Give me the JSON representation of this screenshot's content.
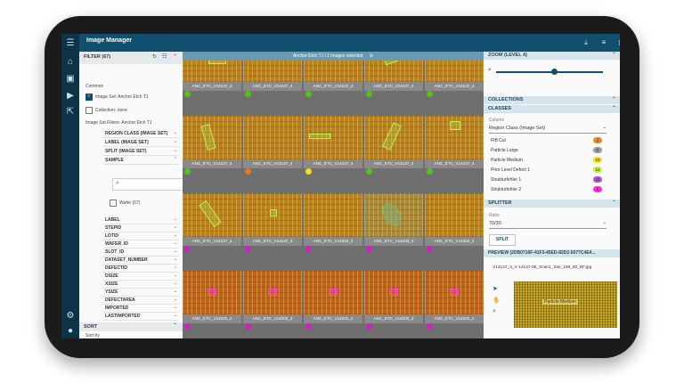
{
  "app": {
    "title": "Image Manager"
  },
  "rail": {
    "icons": [
      "menu-icon",
      "home-icon",
      "image-icon",
      "play-icon",
      "external-link-icon",
      "settings-icon",
      "user-icon"
    ]
  },
  "topbar": {
    "icons": [
      "download-icon",
      "list-icon",
      "image-icon"
    ]
  },
  "selection": {
    "text": "Anchor Etch TJ | 1 images selected"
  },
  "filter": {
    "header": "FILTER (67)",
    "common_label": "Common",
    "image_set_check": "Image Set: Anchor Etch TJ",
    "collection_check": "Collection: none",
    "image_set_filters": "Image Set Filters: Anchor Etch TJ",
    "facets_top": [
      "REGION CLASS (IMAGE SET)",
      "LABEL (IMAGE SET)",
      "SPLIT (IMAGE SET)",
      "SAMPLE"
    ],
    "wafer_option": "Wafer (67)",
    "facets_bottom": [
      "LABEL",
      "STEPID",
      "LOTID",
      "WAFER_ID",
      "SLOT_ID",
      "DATASET_NUMBER",
      "DEFECTID",
      "DSIZE",
      "XSIZE",
      "YSIZE",
      "DEFECTAREA",
      "IMPORTED",
      "LASTIMPORTED"
    ],
    "sort_header": "SORT",
    "sort_by": "Sort by"
  },
  "grid": {
    "captions": [
      [
        "ANC_ETC_V14137_4",
        "ANC_ETC_V14137_4",
        "ANC_ETC_V14137_4",
        "ANC_ETC_V14137_4",
        "ANC_ETC_V14137_4"
      ],
      [
        "ANC_ETC_V14137_4",
        "ANC_ETC_V14137_4",
        "ANC_ETC_V14137_4",
        "ANC_ETC_V14137_4",
        "ANC_ETC_V14137_4"
      ],
      [
        "ANC_ETC_V14137_4",
        "ANC_ETC_V14137_4",
        "ANC_ETC_V14203_2",
        "ANC_ETC_V14203_2",
        "ANC_ETC_V14203_2"
      ],
      [
        "ANC_ETC_V14203_2",
        "ANC_ETC_V14203_2",
        "ANC_ETC_V14203_2",
        "ANC_ETC_V14203_2",
        "ANC_ETC_V14203_2"
      ]
    ],
    "dot_colors": [
      [
        "#55c21a",
        "#55c21a",
        "#55c21a",
        "#55c21a",
        "#55c21a"
      ],
      [
        "#55c21a",
        "#e07a1e",
        "#f0e020",
        "#55c21a",
        "#55c21a"
      ],
      [
        "#d21fc8",
        "#d21fc8",
        "#d21fc8",
        "#d21fc8",
        "#d21fc8"
      ],
      [
        "#d21fc8",
        "#d21fc8",
        "#d21fc8",
        "#d21fc8",
        "#d21fc8"
      ]
    ]
  },
  "zoom": {
    "header": "ZOOM (LEVEL 4)",
    "level": 4
  },
  "collections": {
    "header": "COLLECTIONS"
  },
  "classes": {
    "header": "CLASSES",
    "column_label": "Column",
    "column_value": "Region Class (Image Set)",
    "items": [
      {
        "name": "FIB Cut",
        "count": "2",
        "color": "#e8892a"
      },
      {
        "name": "Particle Large",
        "count": "0",
        "color": "#9a9a9a"
      },
      {
        "name": "Particle Medium",
        "count": "16",
        "color": "#f2dd2a"
      },
      {
        "name": "Prior Level Defect 1",
        "count": "12",
        "color": "#c7f03a"
      },
      {
        "name": "Strukturfehler 1",
        "count": "31",
        "color": "#b05ad0"
      },
      {
        "name": "Strukturfehler 2",
        "count": "0",
        "color": "#ff2bd8"
      }
    ]
  },
  "splitter": {
    "header": "SPLITTER",
    "ratio_label": "Ratio",
    "ratio_value": "70/30",
    "split_button": "SPLIT"
  },
  "preview": {
    "header": "PREVIEW (2DB0716F-41F3-45ED-82D2-5077C4E4...",
    "filename": "V14137_4_V-14137-06_Scan1_Site_199_50_BF.jpg",
    "annotation": "Particle Medium"
  }
}
